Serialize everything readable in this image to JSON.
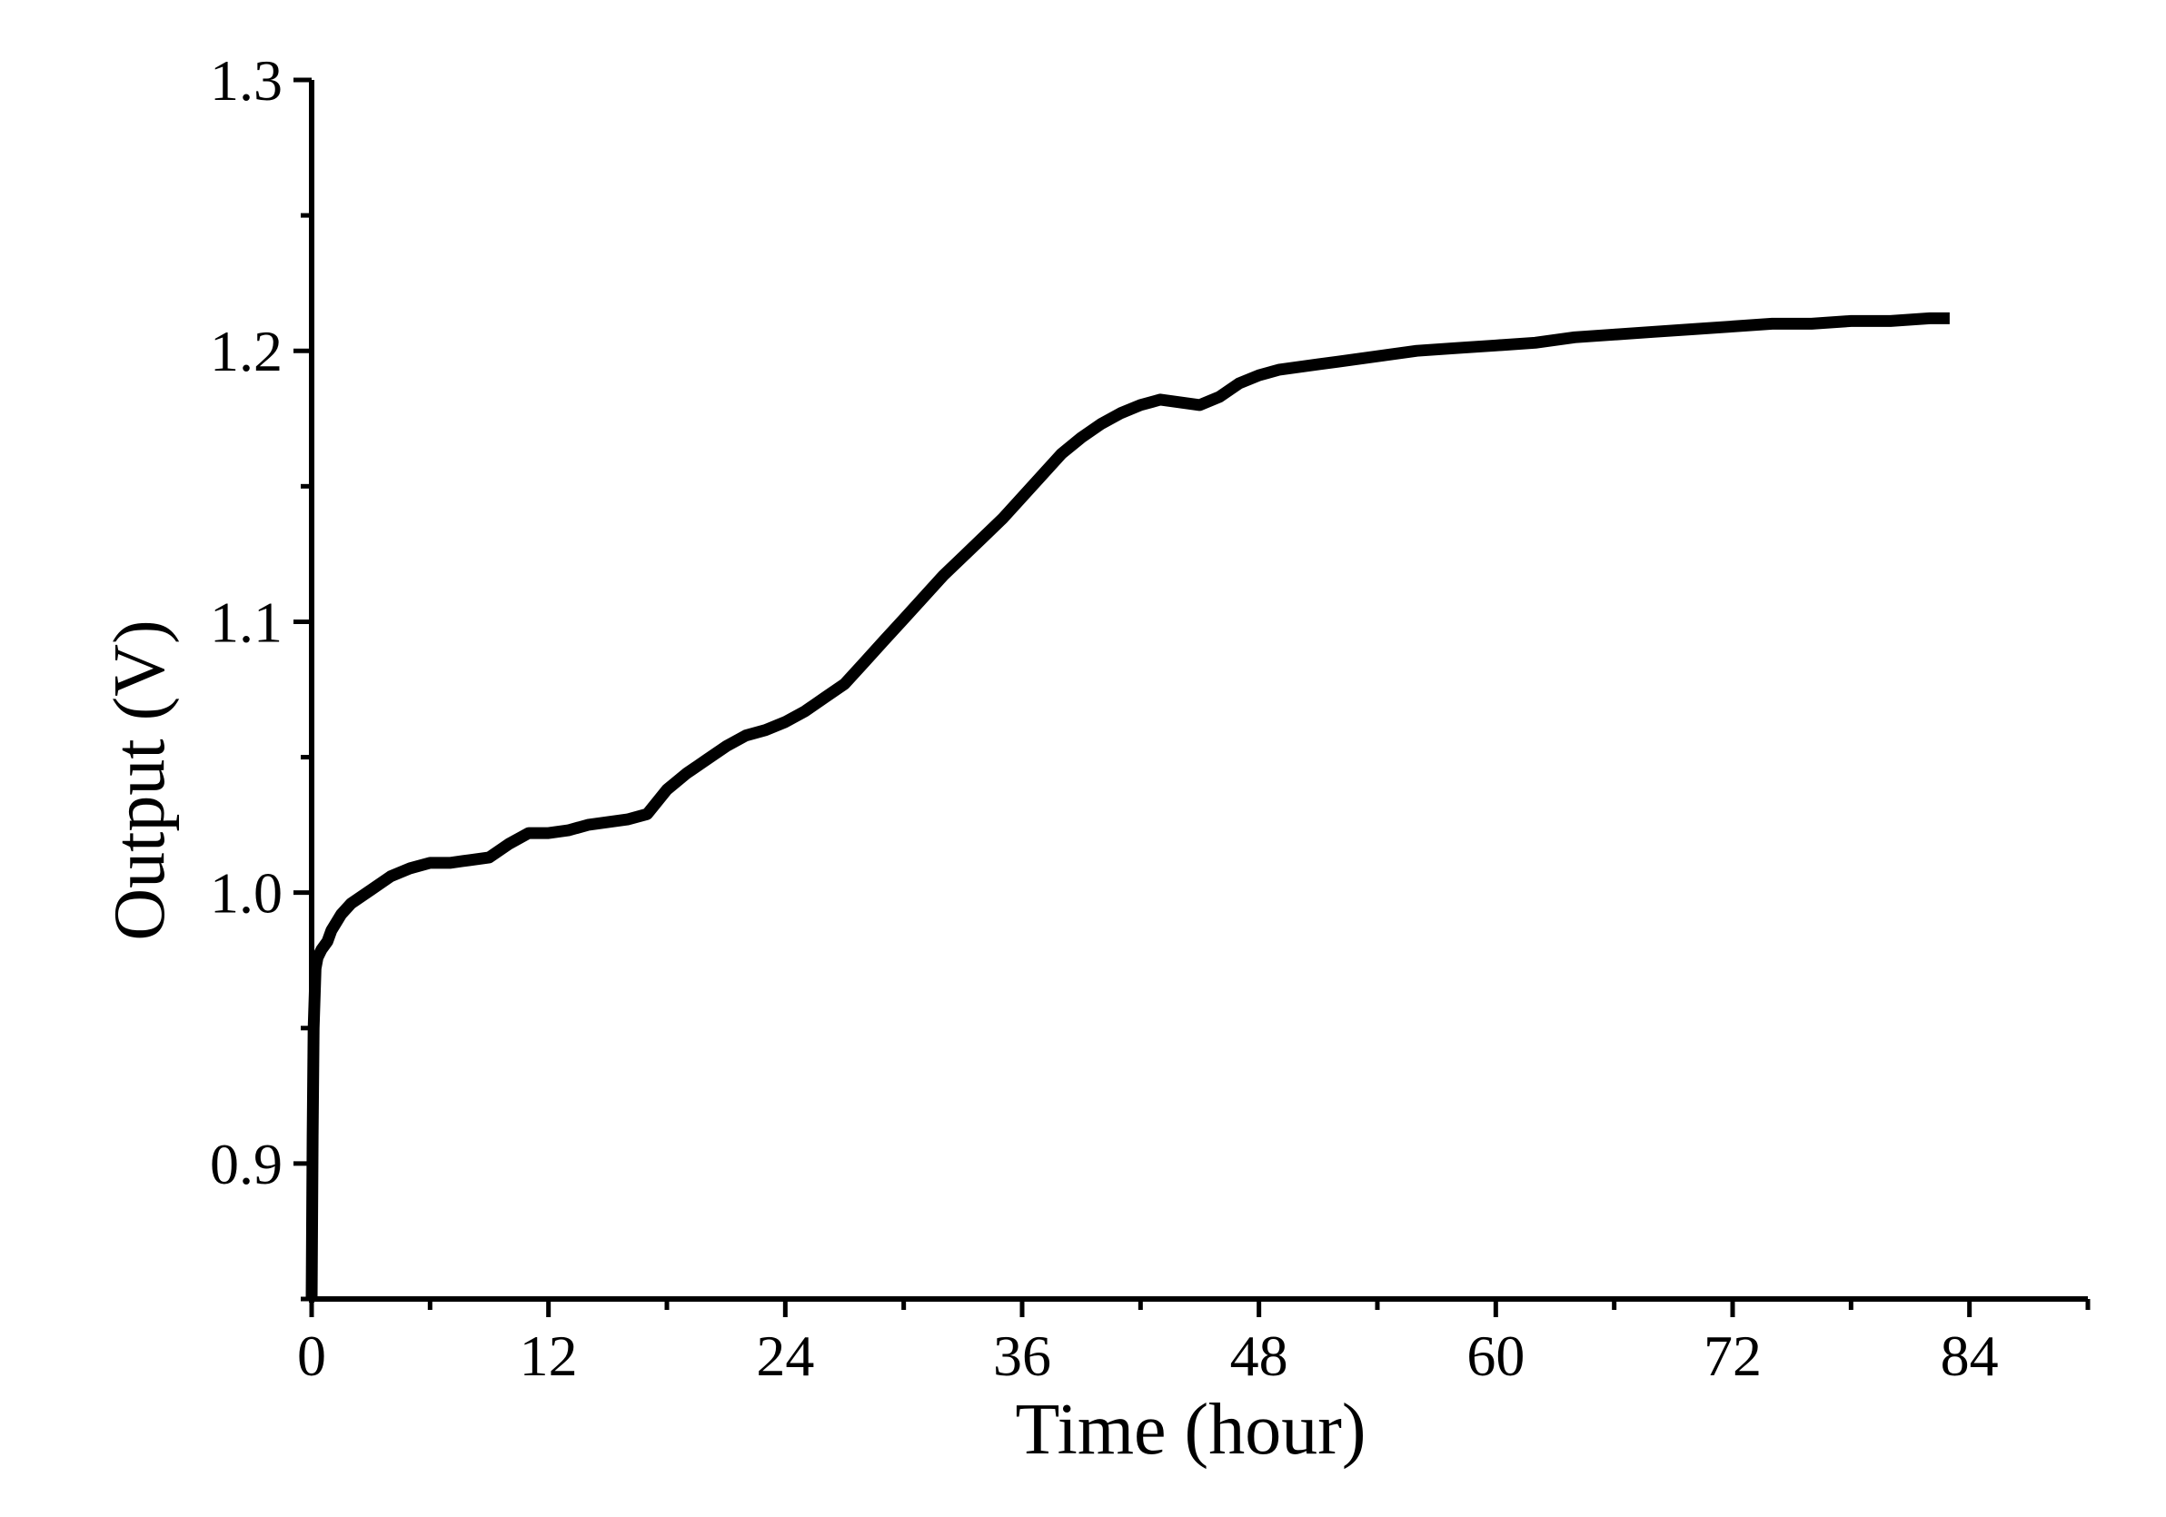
{
  "chart_data": {
    "type": "line",
    "title": "",
    "xlabel": "Time (hour)",
    "ylabel": "Output (V)",
    "xlim": [
      0,
      90
    ],
    "ylim": [
      0.85,
      1.3
    ],
    "x_ticks": [
      0,
      12,
      24,
      36,
      48,
      60,
      72,
      84
    ],
    "x_tick_labels": [
      "0",
      "12",
      "24",
      "36",
      "48",
      "60",
      "72",
      "84"
    ],
    "x_minor_ticks": [
      6,
      18,
      30,
      42,
      54,
      66,
      78,
      90
    ],
    "y_ticks": [
      0.9,
      1.0,
      1.1,
      1.2,
      1.3
    ],
    "y_tick_labels": [
      "0.9",
      "1.0",
      "1.1",
      "1.2",
      "1.3"
    ],
    "y_minor_ticks": [
      0.85,
      0.95,
      1.05,
      1.15,
      1.25
    ],
    "grid": false,
    "legend": "none",
    "series": [
      {
        "color": "#000000",
        "x": [
          0,
          0.05,
          0.1,
          0.2,
          0.3,
          0.5,
          0.8,
          1,
          1.5,
          2,
          3,
          4,
          5,
          6,
          7,
          8,
          9,
          10,
          11,
          12,
          13,
          14,
          15,
          16,
          17,
          18,
          19,
          20,
          21,
          22,
          23,
          24,
          25,
          26,
          27,
          28,
          29,
          30,
          31,
          32,
          33,
          34,
          35,
          36,
          37,
          38,
          39,
          40,
          41,
          42,
          43,
          44,
          45,
          46,
          47,
          48,
          49,
          50,
          51,
          52,
          54,
          56,
          58,
          60,
          62,
          64,
          66,
          68,
          70,
          72,
          74,
          76,
          78,
          80,
          82,
          83
        ],
        "y": [
          0.85,
          0.91,
          0.95,
          0.972,
          0.976,
          0.979,
          0.982,
          0.986,
          0.992,
          0.996,
          1.001,
          1.006,
          1.009,
          1.011,
          1.011,
          1.012,
          1.013,
          1.018,
          1.022,
          1.022,
          1.023,
          1.025,
          1.026,
          1.027,
          1.029,
          1.038,
          1.044,
          1.049,
          1.054,
          1.058,
          1.06,
          1.063,
          1.067,
          1.072,
          1.077,
          1.085,
          1.093,
          1.101,
          1.109,
          1.117,
          1.124,
          1.131,
          1.138,
          1.146,
          1.154,
          1.162,
          1.168,
          1.173,
          1.177,
          1.18,
          1.182,
          1.181,
          1.18,
          1.183,
          1.188,
          1.191,
          1.193,
          1.194,
          1.195,
          1.196,
          1.198,
          1.2,
          1.201,
          1.202,
          1.203,
          1.205,
          1.206,
          1.207,
          1.208,
          1.209,
          1.21,
          1.21,
          1.211,
          1.211,
          1.212,
          1.212
        ]
      }
    ]
  }
}
